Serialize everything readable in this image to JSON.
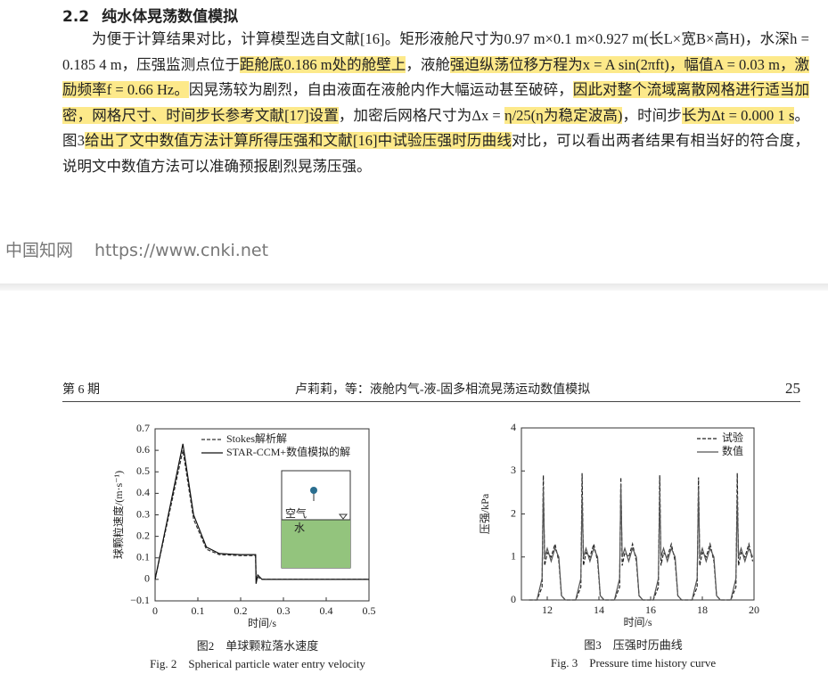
{
  "section": {
    "number": "2.2",
    "title": "纯水体晃荡数值模拟"
  },
  "paragraph": [
    {
      "text": "为便于计算结果对比，计算模型选自文献[16]。矩形液舱尺寸为0.97 m×0.1 m×0.927 m(长L×宽B×高H)，水深h = 0.185 4 m，压强监测点位于",
      "highlight": false
    },
    {
      "text": "距舱底0.186 m处的舱壁上",
      "highlight": true
    },
    {
      "text": "，液舱",
      "highlight": false
    },
    {
      "text": "强迫纵荡位移方程为x = A sin(2πft)，幅值A = 0.03 m，激励频率f = 0.66 Hz。",
      "highlight": true
    },
    {
      "text": "因晃荡较为剧烈，自由液面在液舱内作大幅运动甚至破碎，",
      "highlight": false
    },
    {
      "text": "因此对整个流域离散网格进行适当加密，网格尺寸、时间步长参考文献[17]设置",
      "highlight": true
    },
    {
      "text": "，加密后网格尺寸为Δx = ",
      "highlight": false
    },
    {
      "text": "η/25(η为稳定波高)",
      "highlight": true
    },
    {
      "text": "，时间步",
      "highlight": false
    },
    {
      "text": "长为Δt = 0.000 1 s",
      "highlight": true
    },
    {
      "text": "。图3",
      "highlight": false
    },
    {
      "text": "给出了文中数值方法计算所得压强和文献[16]中试验压强时历曲线",
      "highlight": true
    },
    {
      "text": "对比，可以看出两者结果有相当好的符合度，说明文中数值方法可以准确预报剧烈晃荡压强。",
      "highlight": false
    }
  ],
  "watermark": {
    "name": "中国知网",
    "url": "https://www.cnki.net"
  },
  "page_header": {
    "issue": "第 6 期",
    "running_title": "卢莉莉，等：液舱内气-液-固多相流晃荡运动数值模拟",
    "page": "25"
  },
  "figures": [
    {
      "type": "line",
      "caption": "图2　单球颗粒落水速度",
      "caption_en": "Fig. 2　Spherical particle water entry velocity",
      "xlabel": "时间/s",
      "ylabel": "球颗粒速度/(m·s⁻¹)",
      "legend": "upper left",
      "xlim": [
        0,
        0.5
      ],
      "ylim": [
        -0.1,
        0.7
      ],
      "xticks": [
        0,
        0.1,
        0.2,
        0.3,
        0.4,
        0.5
      ],
      "yticks": [
        {
          "value": -0.1,
          "label": "−0.1"
        },
        0,
        0.1,
        0.2,
        0.3,
        0.4,
        0.5,
        0.6,
        0.7
      ],
      "inset_labels": [
        "空气",
        "水"
      ],
      "series": [
        {
          "name": "Stokes解析解",
          "color": "#333333",
          "dash": true,
          "x": [
            0,
            0.065,
            0.09,
            0.12,
            0.15,
            0.2,
            0.235,
            0.236,
            0.24,
            0.25,
            0.3,
            0.5
          ],
          "values": [
            0,
            0.6,
            0.28,
            0.14,
            0.115,
            0.11,
            0.11,
            0,
            0.01,
            0,
            0,
            0
          ]
        },
        {
          "name": "STAR-CCM+数值模拟的解",
          "color": "#111111",
          "dash": false,
          "x": [
            0,
            0.065,
            0.09,
            0.12,
            0.15,
            0.2,
            0.235,
            0.236,
            0.24,
            0.25,
            0.3,
            0.5
          ],
          "values": [
            0,
            0.63,
            0.3,
            0.15,
            0.12,
            0.115,
            0.115,
            -0.02,
            0.02,
            0,
            0,
            0
          ]
        }
      ]
    },
    {
      "type": "line",
      "caption": "图3　压强时历曲线",
      "caption_en": "Fig. 3　Pressure time history curve",
      "xlabel": "时间/s",
      "ylabel": "压强/kPa",
      "legend": "upper right",
      "xlim": [
        11,
        20
      ],
      "ylim": [
        0,
        4
      ],
      "xticks": [
        12,
        14,
        16,
        18,
        20
      ],
      "yticks": [
        0,
        1,
        2,
        3,
        4
      ],
      "x": [
        11.3,
        11.6,
        11.8,
        11.85,
        11.9,
        12.0,
        12.15,
        12.3,
        12.45,
        12.55,
        12.7,
        13.1,
        13.3,
        13.35,
        13.4,
        13.5,
        13.65,
        13.8,
        13.95,
        14.05,
        14.2,
        14.6,
        14.8,
        14.85,
        14.9,
        15.0,
        15.15,
        15.3,
        15.45,
        15.55,
        15.7,
        16.1,
        16.3,
        16.35,
        16.4,
        16.5,
        16.65,
        16.8,
        16.95,
        17.05,
        17.2,
        17.6,
        17.8,
        17.85,
        17.9,
        18.0,
        18.15,
        18.3,
        18.45,
        18.55,
        18.7,
        19.1,
        19.3,
        19.35,
        19.4,
        19.5,
        19.65,
        19.8,
        19.95
      ],
      "series": [
        {
          "name": "试验",
          "color": "#222222",
          "dash": true,
          "values": [
            0,
            0,
            0.3,
            2.9,
            0.8,
            1.1,
            1.0,
            1.3,
            0.9,
            0.1,
            0,
            0,
            0.3,
            2.95,
            0.8,
            1.1,
            1.0,
            1.3,
            0.9,
            0.1,
            0,
            0,
            0.3,
            2.85,
            0.8,
            1.1,
            1.0,
            1.3,
            0.9,
            0.1,
            0,
            0,
            0.3,
            2.9,
            0.8,
            1.1,
            1.0,
            1.3,
            0.9,
            0.1,
            0,
            0,
            0.3,
            2.85,
            0.8,
            1.1,
            1.0,
            1.3,
            0.9,
            0.1,
            0,
            0,
            0.3,
            2.95,
            0.8,
            1.1,
            1.0,
            1.3,
            0.9
          ]
        },
        {
          "name": "数值",
          "color": "#555555",
          "dash": false,
          "values": [
            0,
            0,
            0.5,
            2.6,
            1.0,
            1.2,
            0.9,
            1.2,
            1.0,
            0.1,
            0,
            0,
            0.5,
            2.4,
            1.0,
            1.2,
            0.9,
            1.2,
            1.0,
            0.1,
            0,
            0,
            0.5,
            2.7,
            1.0,
            1.2,
            0.9,
            1.2,
            1.0,
            0.1,
            0,
            0,
            0.5,
            2.5,
            1.0,
            1.2,
            0.9,
            1.2,
            1.0,
            0.1,
            0,
            0,
            0.5,
            2.6,
            1.0,
            1.2,
            0.9,
            1.2,
            1.0,
            0.1,
            0,
            0,
            0.5,
            2.4,
            1.0,
            1.2,
            0.9,
            1.2,
            1.0
          ]
        }
      ]
    }
  ]
}
